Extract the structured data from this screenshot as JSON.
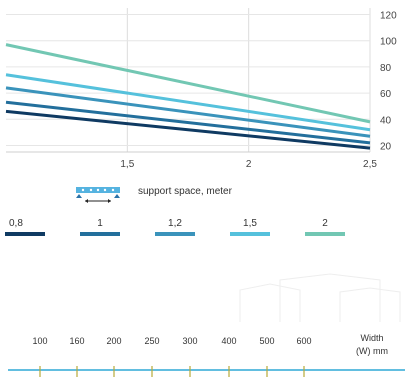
{
  "chart_data": {
    "type": "line",
    "x_range": [
      1.0,
      2.5
    ],
    "ylim": [
      15,
      125
    ],
    "x_ticks": [
      {
        "value": 1.5,
        "label": "1,5"
      },
      {
        "value": 2.0,
        "label": "2"
      },
      {
        "value": 2.5,
        "label": "2,5"
      }
    ],
    "y_ticks": [
      20,
      40,
      60,
      80,
      100,
      120
    ],
    "y_axis_side": "right",
    "grid": true,
    "xlabel": "support space, meter",
    "series": [
      {
        "name": "0,8",
        "color": "#0f3a62",
        "x": [
          1.0,
          2.5
        ],
        "y": [
          46,
          18
        ]
      },
      {
        "name": "1",
        "color": "#236f9c",
        "x": [
          1.0,
          2.5
        ],
        "y": [
          53,
          22
        ]
      },
      {
        "name": "1,2",
        "color": "#3a93bb",
        "x": [
          1.0,
          2.5
        ],
        "y": [
          64,
          27
        ]
      },
      {
        "name": "1,5",
        "color": "#55c1dc",
        "x": [
          1.0,
          2.5
        ],
        "y": [
          74,
          32
        ]
      },
      {
        "name": "2",
        "color": "#72c7b3",
        "x": [
          1.0,
          2.5
        ],
        "y": [
          97,
          38
        ]
      }
    ],
    "legend_placement": "below"
  },
  "width_scale": {
    "label_line1": "Width",
    "label_line2": "(W) mm",
    "ticks": [
      "100",
      "160",
      "200",
      "250",
      "300",
      "400",
      "500",
      "600"
    ],
    "color": "#2fa8d6",
    "tick_color": "#b8a93a"
  },
  "icons": {
    "beam": "beam-span-icon"
  }
}
